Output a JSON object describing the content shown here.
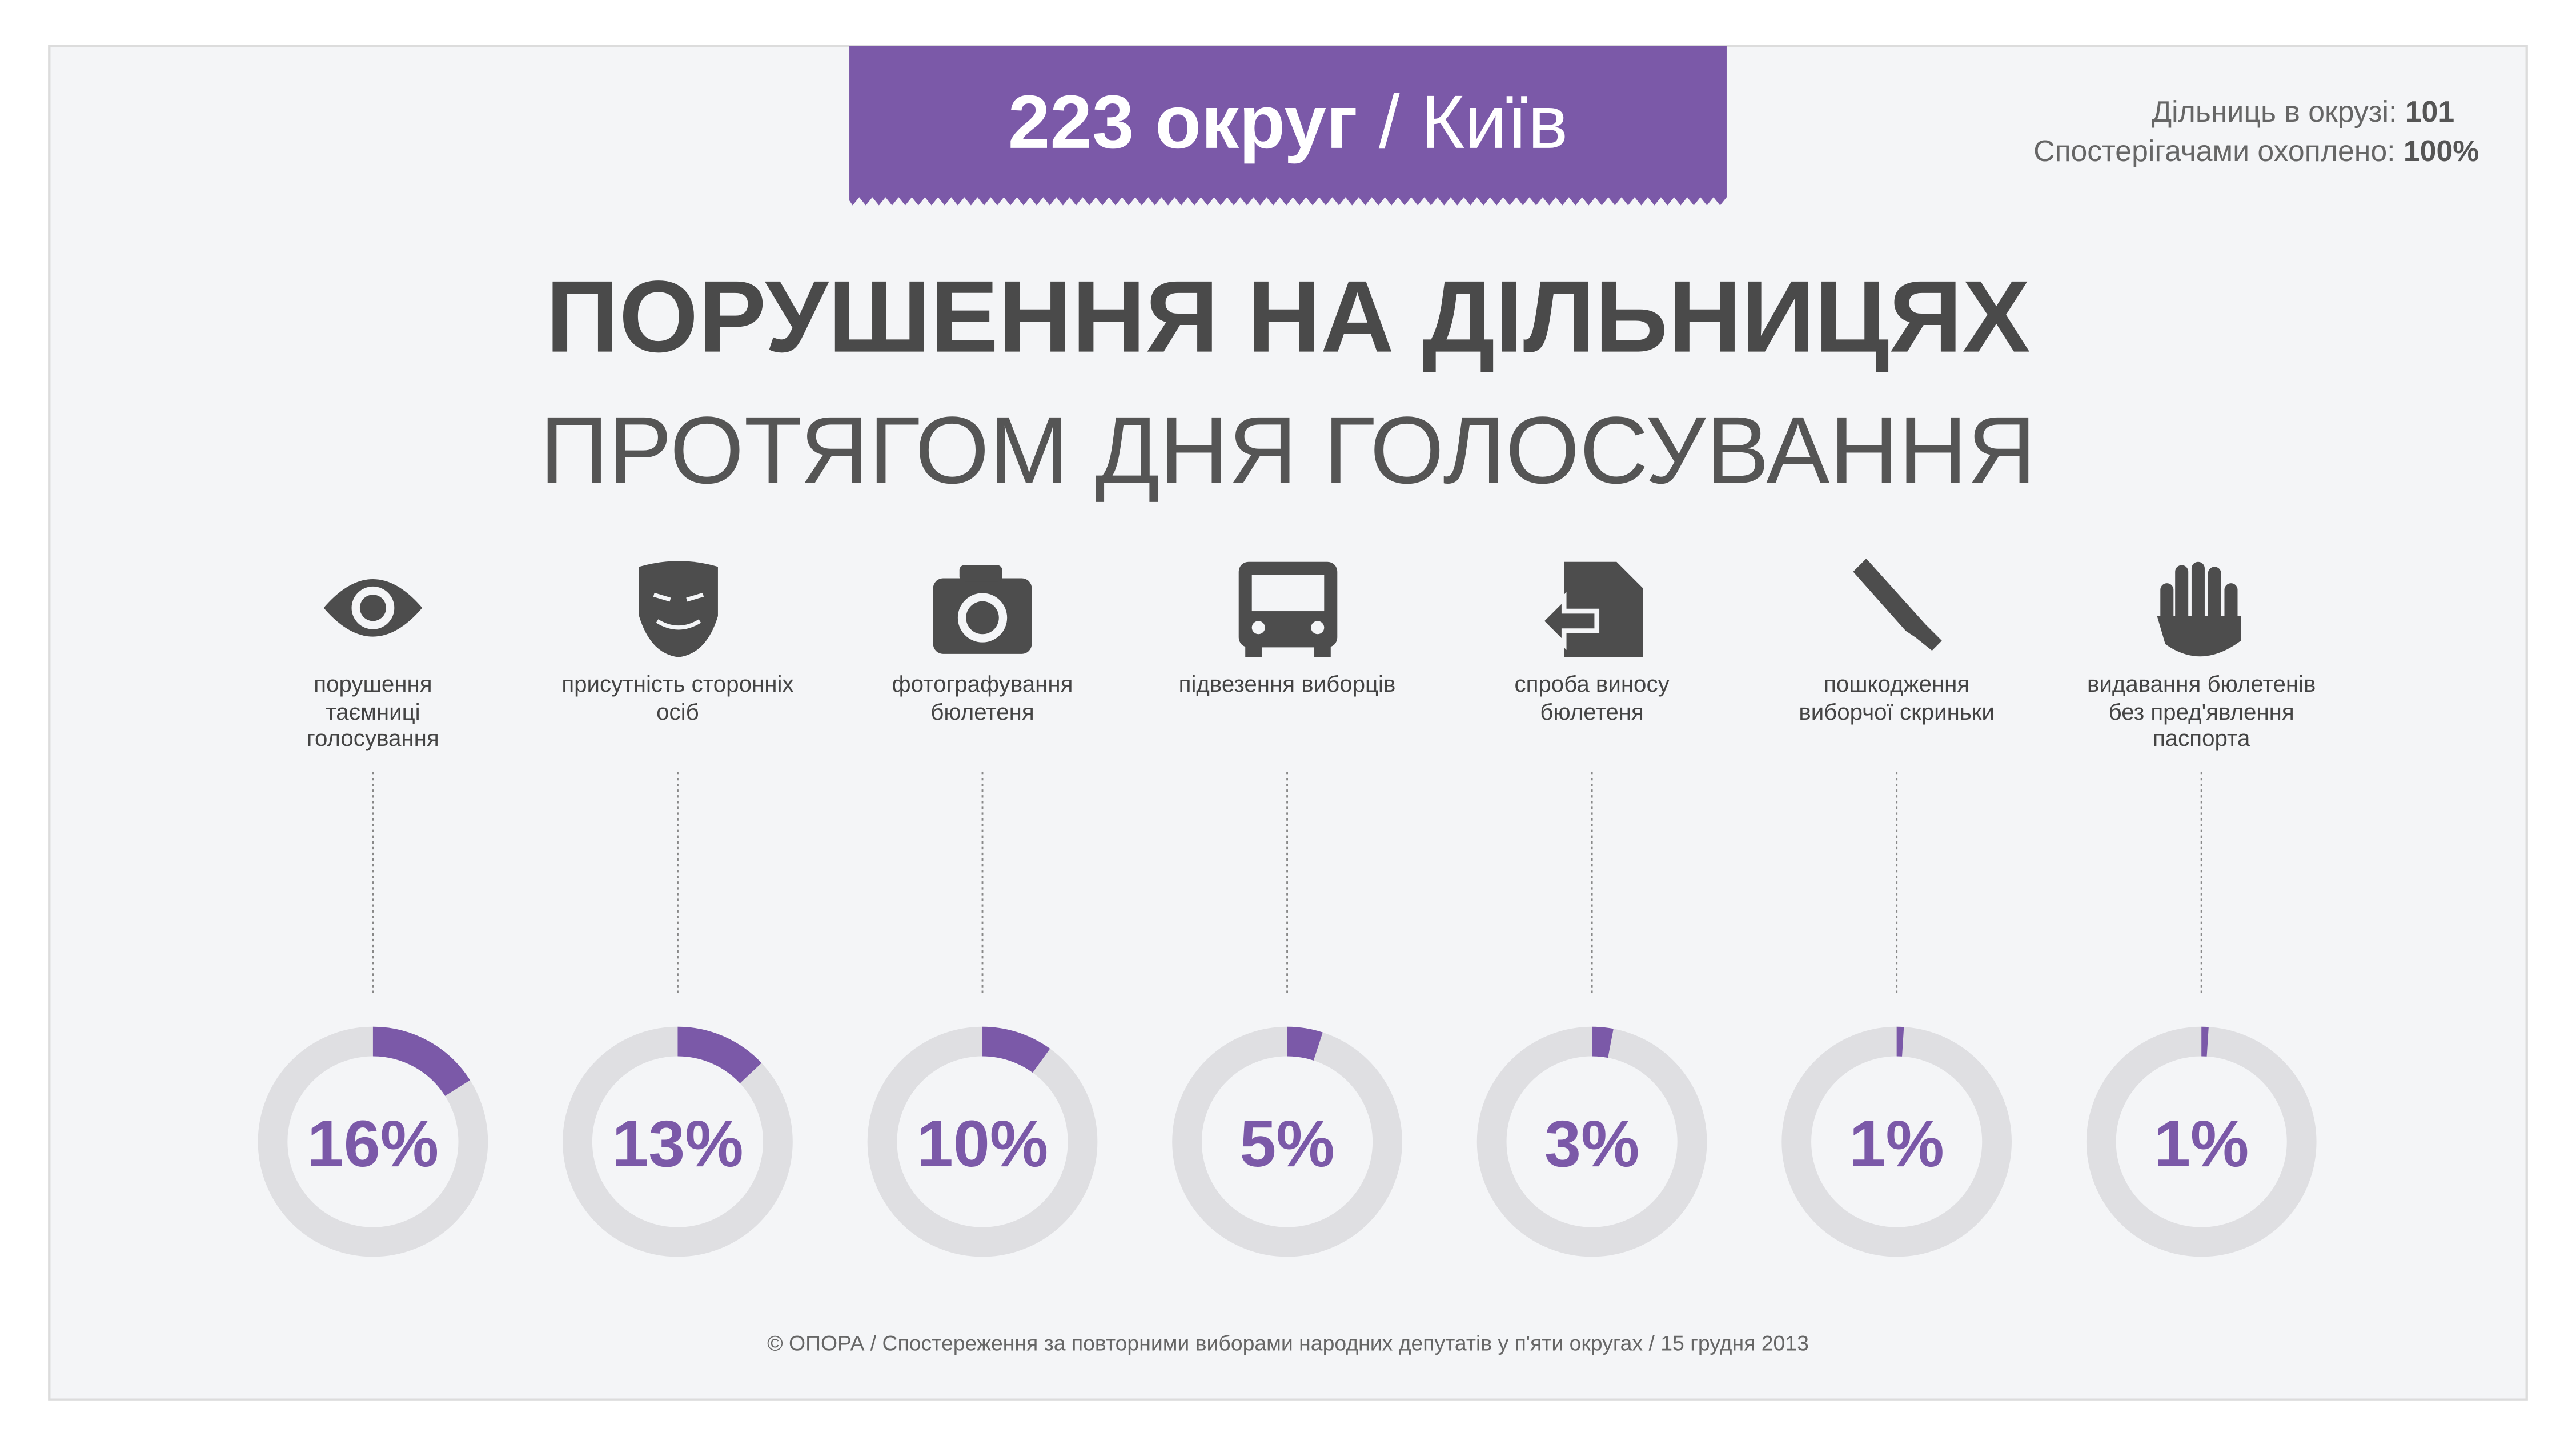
{
  "chart_data": {
    "type": "donut",
    "header": [
      "223 округ",
      "/ Київ"
    ],
    "stats": [
      {
        "label": "Дільниць в окрузі:",
        "value": "101"
      },
      {
        "label": "Спостерігачами охоплено:",
        "value": "100%"
      }
    ],
    "title": "ПОРУШЕННЯ НА ДІЛЬНИЦЯХ",
    "subtitle": "ПРОТЯГОМ ДНЯ ГОЛОСУВАННЯ",
    "categories": [
      "порушення таємниці голосування",
      "присутність сторонніх осіб",
      "фотографування бюлетеня",
      "підвезення виборців",
      "спроба виносу бюлетеня",
      "пошкодження виборчої скриньки",
      "видавання бюлетенів без пред'явлення паспорта"
    ],
    "values": [
      16,
      13,
      10,
      5,
      3,
      1,
      1
    ],
    "value_labels": [
      "16%",
      "13%",
      "10%",
      "5%",
      "3%",
      "1%",
      "1%"
    ],
    "color": "#7b59a8",
    "track_color": "#dfdfe2",
    "source": "© ОПОРА / Спостереження за повторними виборами народних депутатів  у п'яти округах / 15 грудня 2013"
  }
}
